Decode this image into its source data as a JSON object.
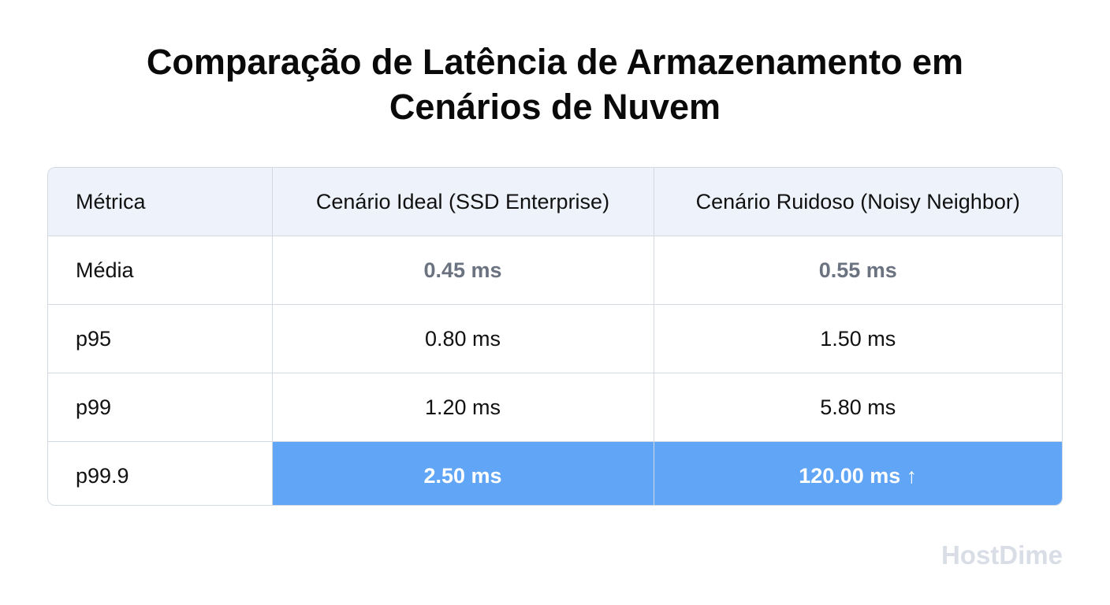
{
  "header": {
    "title": "Comparação de Latência de Armazenamento em Cenários de Nuvem"
  },
  "table": {
    "columns": [
      "Métrica",
      "Cenário Ideal (SSD Enterprise)",
      "Cenário Ruidoso (Noisy Neighbor)"
    ],
    "rows": [
      [
        "Média",
        "0.45 ms",
        "0.55 ms"
      ],
      [
        "p95",
        "0.80 ms",
        "1.50 ms"
      ],
      [
        "p99",
        "1.20 ms",
        "5.80 ms"
      ],
      [
        "p99.9",
        "2.50 ms",
        "120.00 ms ↑"
      ]
    ]
  },
  "footer": {
    "watermark": "HostDime"
  }
}
